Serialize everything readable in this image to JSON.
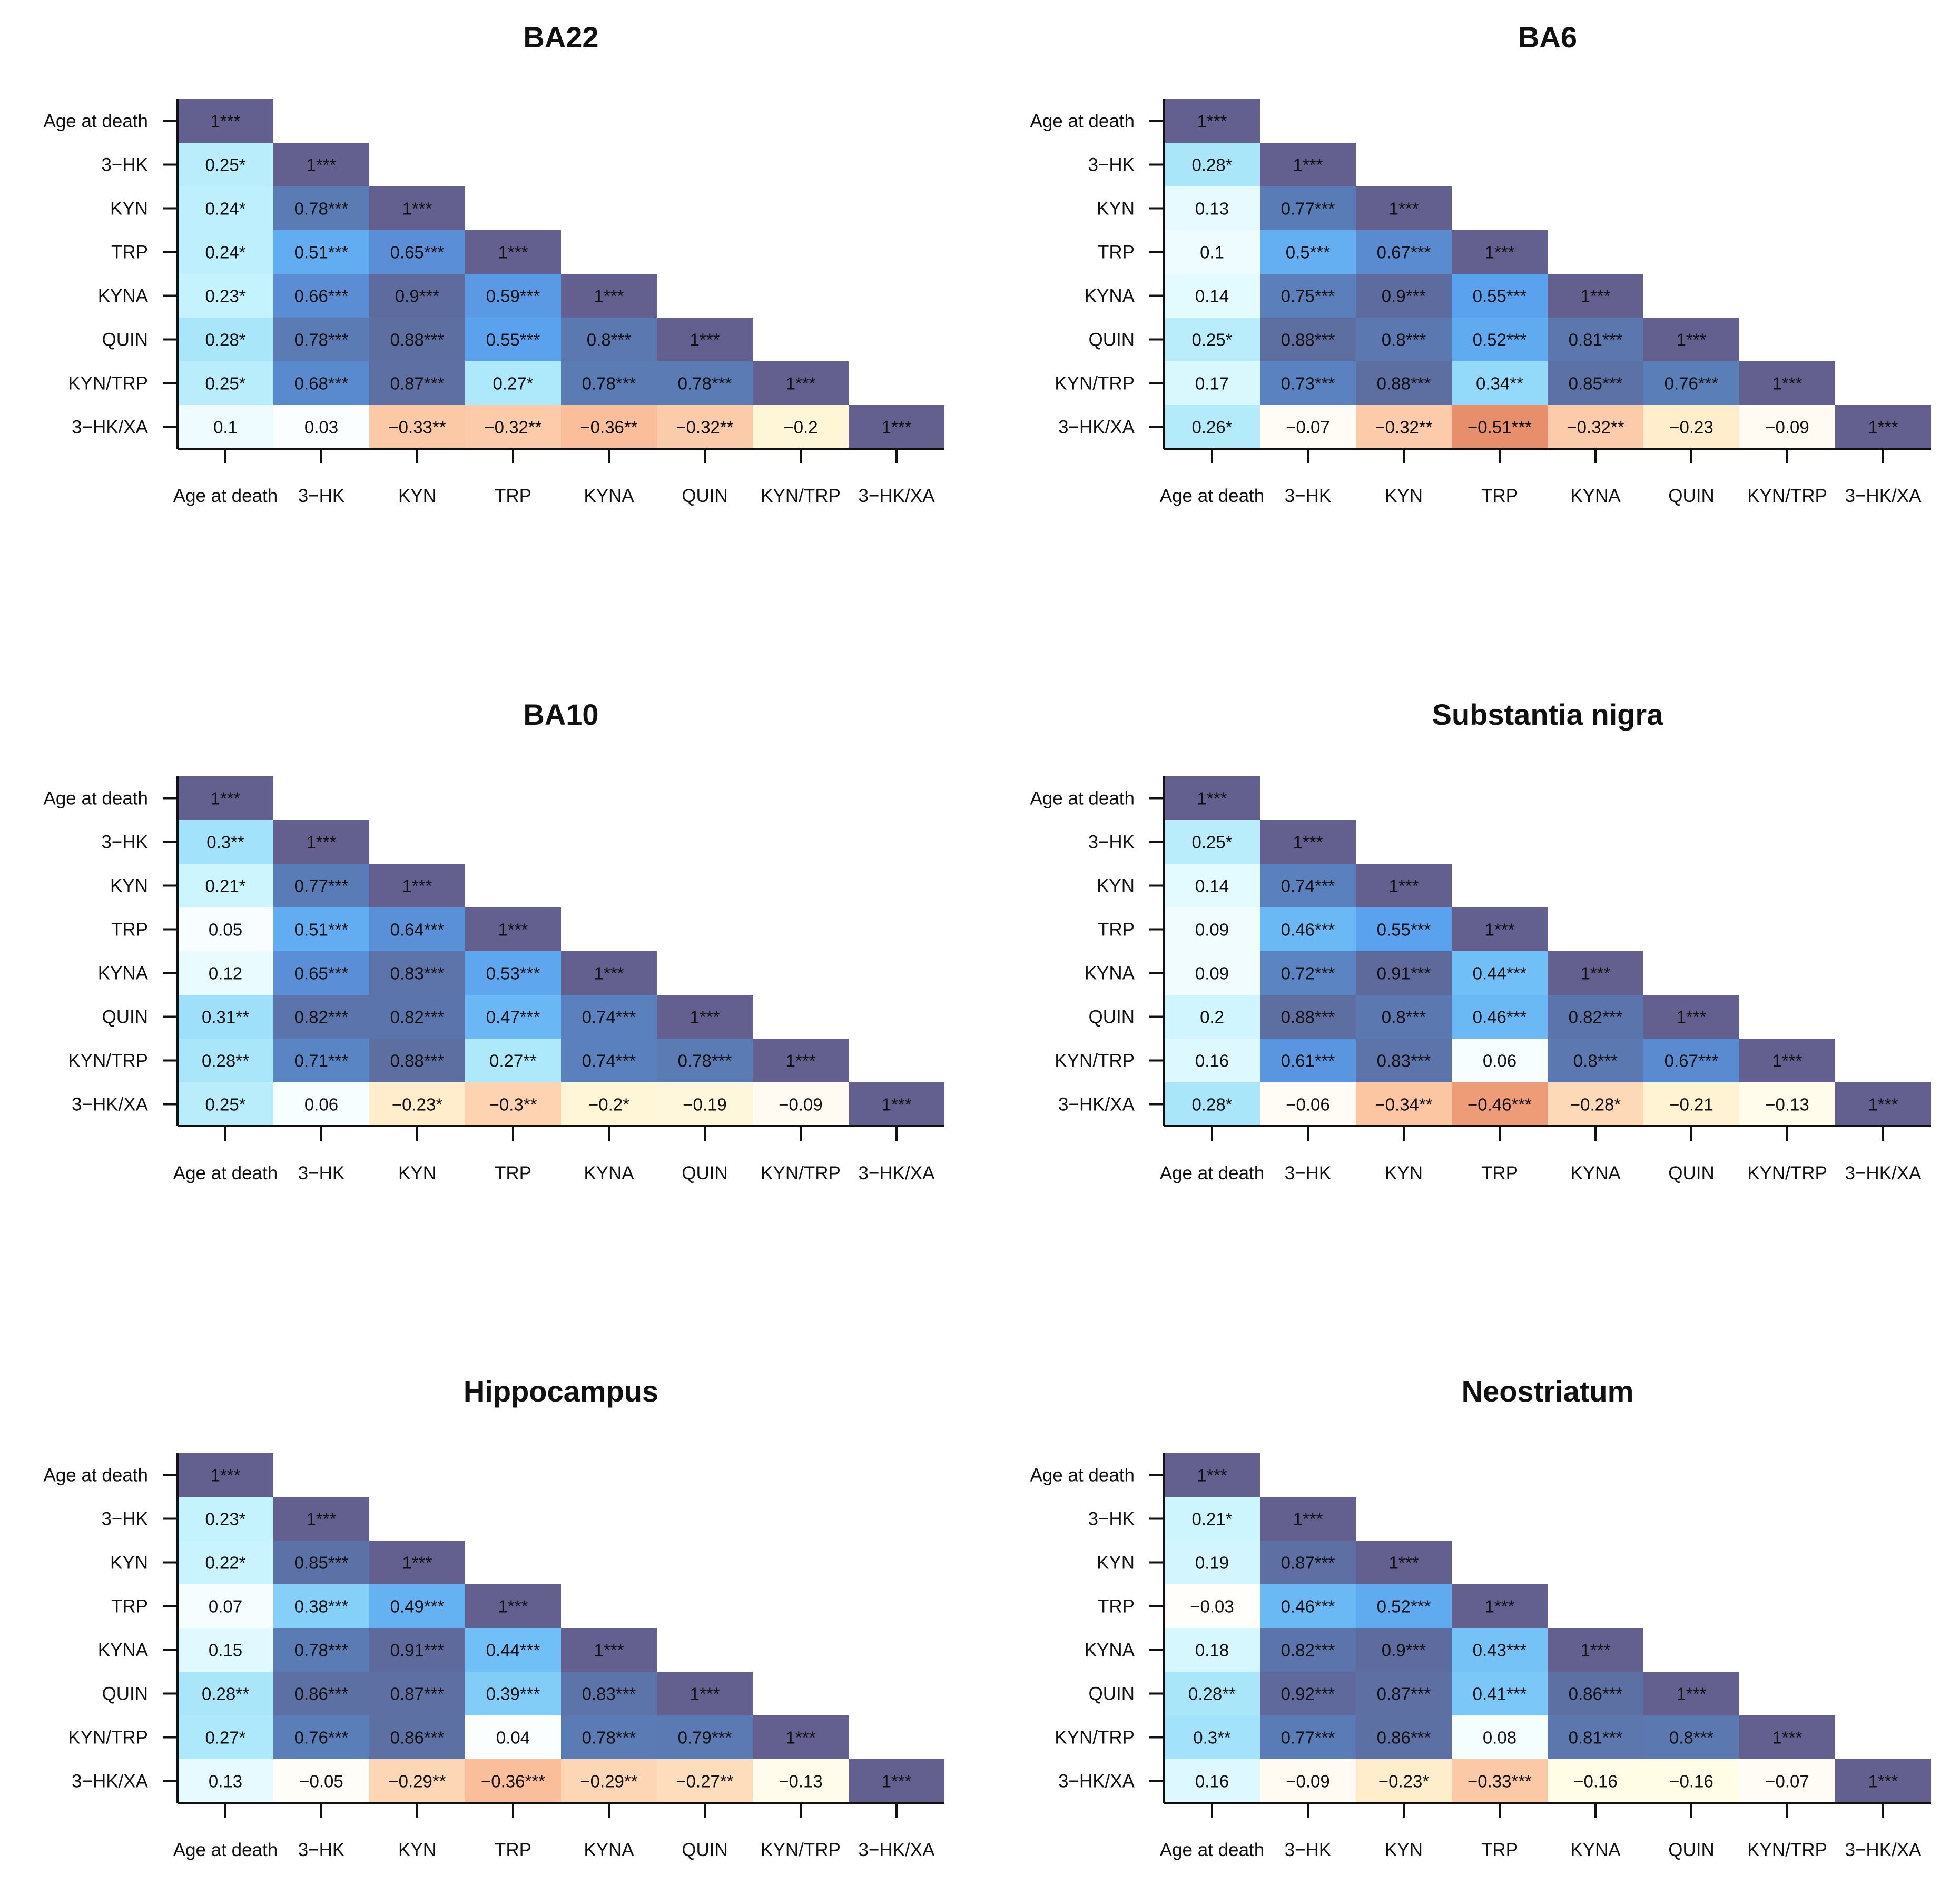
{
  "chart_data": [
    {
      "type": "heatmap",
      "title": "BA22",
      "labels": [
        "Age at death",
        "3−HK",
        "KYN",
        "TRP",
        "KYNA",
        "QUIN",
        "KYN/TRP",
        "3−HK/XA"
      ],
      "values": [
        [
          1
        ],
        [
          0.25,
          1
        ],
        [
          0.24,
          0.78,
          1
        ],
        [
          0.24,
          0.51,
          0.65,
          1
        ],
        [
          0.23,
          0.66,
          0.9,
          0.59,
          1
        ],
        [
          0.28,
          0.78,
          0.88,
          0.55,
          0.8,
          1
        ],
        [
          0.25,
          0.68,
          0.87,
          0.27,
          0.78,
          0.78,
          1
        ],
        [
          0.1,
          0.03,
          -0.33,
          -0.32,
          -0.36,
          -0.32,
          -0.2,
          1
        ]
      ],
      "cell_text": [
        [
          "1***"
        ],
        [
          "0.25*",
          "1***"
        ],
        [
          "0.24*",
          "0.78***",
          "1***"
        ],
        [
          "0.24*",
          "0.51***",
          "0.65***",
          "1***"
        ],
        [
          "0.23*",
          "0.66***",
          "0.9***",
          "0.59***",
          "1***"
        ],
        [
          "0.28*",
          "0.78***",
          "0.88***",
          "0.55***",
          "0.8***",
          "1***"
        ],
        [
          "0.25*",
          "0.68***",
          "0.87***",
          "0.27*",
          "0.78***",
          "0.78***",
          "1***"
        ],
        [
          "0.1",
          "0.03",
          "−0.33**",
          "−0.32**",
          "−0.36**",
          "−0.32**",
          "−0.2",
          "1***"
        ]
      ]
    },
    {
      "type": "heatmap",
      "title": "BA6",
      "labels": [
        "Age at death",
        "3−HK",
        "KYN",
        "TRP",
        "KYNA",
        "QUIN",
        "KYN/TRP",
        "3−HK/XA"
      ],
      "values": [
        [
          1
        ],
        [
          0.28,
          1
        ],
        [
          0.13,
          0.77,
          1
        ],
        [
          0.1,
          0.5,
          0.67,
          1
        ],
        [
          0.14,
          0.75,
          0.9,
          0.55,
          1
        ],
        [
          0.25,
          0.88,
          0.8,
          0.52,
          0.81,
          1
        ],
        [
          0.17,
          0.73,
          0.88,
          0.34,
          0.85,
          0.76,
          1
        ],
        [
          0.26,
          -0.07,
          -0.32,
          -0.51,
          -0.32,
          -0.23,
          -0.09,
          1
        ]
      ],
      "cell_text": [
        [
          "1***"
        ],
        [
          "0.28*",
          "1***"
        ],
        [
          "0.13",
          "0.77***",
          "1***"
        ],
        [
          "0.1",
          "0.5***",
          "0.67***",
          "1***"
        ],
        [
          "0.14",
          "0.75***",
          "0.9***",
          "0.55***",
          "1***"
        ],
        [
          "0.25*",
          "0.88***",
          "0.8***",
          "0.52***",
          "0.81***",
          "1***"
        ],
        [
          "0.17",
          "0.73***",
          "0.88***",
          "0.34**",
          "0.85***",
          "0.76***",
          "1***"
        ],
        [
          "0.26*",
          "−0.07",
          "−0.32**",
          "−0.51***",
          "−0.32**",
          "−0.23",
          "−0.09",
          "1***"
        ]
      ]
    },
    {
      "type": "heatmap",
      "title": "BA10",
      "labels": [
        "Age at death",
        "3−HK",
        "KYN",
        "TRP",
        "KYNA",
        "QUIN",
        "KYN/TRP",
        "3−HK/XA"
      ],
      "values": [
        [
          1
        ],
        [
          0.3,
          1
        ],
        [
          0.21,
          0.77,
          1
        ],
        [
          0.05,
          0.51,
          0.64,
          1
        ],
        [
          0.12,
          0.65,
          0.83,
          0.53,
          1
        ],
        [
          0.31,
          0.82,
          0.82,
          0.47,
          0.74,
          1
        ],
        [
          0.28,
          0.71,
          0.88,
          0.27,
          0.74,
          0.78,
          1
        ],
        [
          0.25,
          0.06,
          -0.23,
          -0.3,
          -0.2,
          -0.19,
          -0.09,
          1
        ]
      ],
      "cell_text": [
        [
          "1***"
        ],
        [
          "0.3**",
          "1***"
        ],
        [
          "0.21*",
          "0.77***",
          "1***"
        ],
        [
          "0.05",
          "0.51***",
          "0.64***",
          "1***"
        ],
        [
          "0.12",
          "0.65***",
          "0.83***",
          "0.53***",
          "1***"
        ],
        [
          "0.31**",
          "0.82***",
          "0.82***",
          "0.47***",
          "0.74***",
          "1***"
        ],
        [
          "0.28**",
          "0.71***",
          "0.88***",
          "0.27**",
          "0.74***",
          "0.78***",
          "1***"
        ],
        [
          "0.25*",
          "0.06",
          "−0.23*",
          "−0.3**",
          "−0.2*",
          "−0.19",
          "−0.09",
          "1***"
        ]
      ]
    },
    {
      "type": "heatmap",
      "title": "Substantia nigra",
      "labels": [
        "Age at death",
        "3−HK",
        "KYN",
        "TRP",
        "KYNA",
        "QUIN",
        "KYN/TRP",
        "3−HK/XA"
      ],
      "values": [
        [
          1
        ],
        [
          0.25,
          1
        ],
        [
          0.14,
          0.74,
          1
        ],
        [
          0.09,
          0.46,
          0.55,
          1
        ],
        [
          0.09,
          0.72,
          0.91,
          0.44,
          1
        ],
        [
          0.2,
          0.88,
          0.8,
          0.46,
          0.82,
          1
        ],
        [
          0.16,
          0.61,
          0.83,
          0.06,
          0.8,
          0.67,
          1
        ],
        [
          0.28,
          -0.06,
          -0.34,
          -0.46,
          -0.28,
          -0.21,
          -0.13,
          1
        ]
      ],
      "cell_text": [
        [
          "1***"
        ],
        [
          "0.25*",
          "1***"
        ],
        [
          "0.14",
          "0.74***",
          "1***"
        ],
        [
          "0.09",
          "0.46***",
          "0.55***",
          "1***"
        ],
        [
          "0.09",
          "0.72***",
          "0.91***",
          "0.44***",
          "1***"
        ],
        [
          "0.2",
          "0.88***",
          "0.8***",
          "0.46***",
          "0.82***",
          "1***"
        ],
        [
          "0.16",
          "0.61***",
          "0.83***",
          "0.06",
          "0.8***",
          "0.67***",
          "1***"
        ],
        [
          "0.28*",
          "−0.06",
          "−0.34**",
          "−0.46***",
          "−0.28*",
          "−0.21",
          "−0.13",
          "1***"
        ]
      ]
    },
    {
      "type": "heatmap",
      "title": "Hippocampus",
      "labels": [
        "Age at death",
        "3−HK",
        "KYN",
        "TRP",
        "KYNA",
        "QUIN",
        "KYN/TRP",
        "3−HK/XA"
      ],
      "values": [
        [
          1
        ],
        [
          0.23,
          1
        ],
        [
          0.22,
          0.85,
          1
        ],
        [
          0.07,
          0.38,
          0.49,
          1
        ],
        [
          0.15,
          0.78,
          0.91,
          0.44,
          1
        ],
        [
          0.28,
          0.86,
          0.87,
          0.39,
          0.83,
          1
        ],
        [
          0.27,
          0.76,
          0.86,
          0.04,
          0.78,
          0.79,
          1
        ],
        [
          0.13,
          -0.05,
          -0.29,
          -0.36,
          -0.29,
          -0.27,
          -0.13,
          1
        ]
      ],
      "cell_text": [
        [
          "1***"
        ],
        [
          "0.23*",
          "1***"
        ],
        [
          "0.22*",
          "0.85***",
          "1***"
        ],
        [
          "0.07",
          "0.38***",
          "0.49***",
          "1***"
        ],
        [
          "0.15",
          "0.78***",
          "0.91***",
          "0.44***",
          "1***"
        ],
        [
          "0.28**",
          "0.86***",
          "0.87***",
          "0.39***",
          "0.83***",
          "1***"
        ],
        [
          "0.27*",
          "0.76***",
          "0.86***",
          "0.04",
          "0.78***",
          "0.79***",
          "1***"
        ],
        [
          "0.13",
          "−0.05",
          "−0.29**",
          "−0.36***",
          "−0.29**",
          "−0.27**",
          "−0.13",
          "1***"
        ]
      ]
    },
    {
      "type": "heatmap",
      "title": "Neostriatum",
      "labels": [
        "Age at death",
        "3−HK",
        "KYN",
        "TRP",
        "KYNA",
        "QUIN",
        "KYN/TRP",
        "3−HK/XA"
      ],
      "values": [
        [
          1
        ],
        [
          0.21,
          1
        ],
        [
          0.19,
          0.87,
          1
        ],
        [
          -0.03,
          0.46,
          0.52,
          1
        ],
        [
          0.18,
          0.82,
          0.9,
          0.43,
          1
        ],
        [
          0.28,
          0.92,
          0.87,
          0.41,
          0.86,
          1
        ],
        [
          0.3,
          0.77,
          0.86,
          0.08,
          0.81,
          0.8,
          1
        ],
        [
          0.16,
          -0.09,
          -0.23,
          -0.33,
          -0.16,
          -0.16,
          -0.07,
          1
        ]
      ],
      "cell_text": [
        [
          "1***"
        ],
        [
          "0.21*",
          "1***"
        ],
        [
          "0.19",
          "0.87***",
          "1***"
        ],
        [
          "−0.03",
          "0.46***",
          "0.52***",
          "1***"
        ],
        [
          "0.18",
          "0.82***",
          "0.9***",
          "0.43***",
          "1***"
        ],
        [
          "0.28**",
          "0.92***",
          "0.87***",
          "0.41***",
          "0.86***",
          "1***"
        ],
        [
          "0.3**",
          "0.77***",
          "0.86***",
          "0.08",
          "0.81***",
          "0.8***",
          "1***"
        ],
        [
          "0.16",
          "−0.09",
          "−0.23*",
          "−0.33***",
          "−0.16",
          "−0.16",
          "−0.07",
          "1***"
        ]
      ]
    }
  ]
}
